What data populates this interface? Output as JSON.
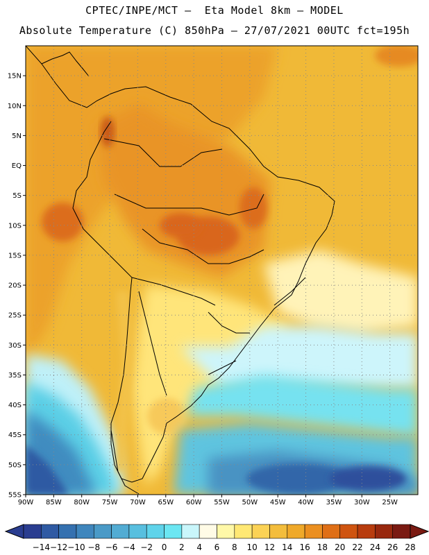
{
  "header": {
    "title_line1": "CPTEC/INPE/MCT –  Eta Model 8km – MODEL",
    "title_line2": "Absolute Temperature (C) 850hPa – 27/07/2021 00UTC fct=195h"
  },
  "map": {
    "lon_range": [
      -90,
      -20
    ],
    "lat_range": [
      -55,
      20
    ],
    "lat_ticks": [
      {
        "value": 15,
        "label": "15N"
      },
      {
        "value": 10,
        "label": "10N"
      },
      {
        "value": 5,
        "label": "5N"
      },
      {
        "value": 0,
        "label": "EQ"
      },
      {
        "value": -5,
        "label": "5S"
      },
      {
        "value": -10,
        "label": "10S"
      },
      {
        "value": -15,
        "label": "15S"
      },
      {
        "value": -20,
        "label": "20S"
      },
      {
        "value": -25,
        "label": "25S"
      },
      {
        "value": -30,
        "label": "30S"
      },
      {
        "value": -35,
        "label": "35S"
      },
      {
        "value": -40,
        "label": "40S"
      },
      {
        "value": -45,
        "label": "45S"
      },
      {
        "value": -50,
        "label": "50S"
      },
      {
        "value": -55,
        "label": "55S"
      }
    ],
    "lon_ticks": [
      {
        "value": -90,
        "label": "90W"
      },
      {
        "value": -85,
        "label": "85W"
      },
      {
        "value": -80,
        "label": "80W"
      },
      {
        "value": -75,
        "label": "75W"
      },
      {
        "value": -70,
        "label": "70W"
      },
      {
        "value": -65,
        "label": "65W"
      },
      {
        "value": -60,
        "label": "60W"
      },
      {
        "value": -55,
        "label": "55W"
      },
      {
        "value": -50,
        "label": "50W"
      },
      {
        "value": -45,
        "label": "45W"
      },
      {
        "value": -40,
        "label": "40W"
      },
      {
        "value": -35,
        "label": "35W"
      },
      {
        "value": -30,
        "label": "30W"
      },
      {
        "value": -25,
        "label": "25W"
      }
    ],
    "grid": "dotted"
  },
  "colorbar": {
    "labels": [
      "-14",
      "-12",
      "-10",
      "-8",
      "-6",
      "-4",
      "-2",
      "0",
      "2",
      "4",
      "6",
      "8",
      "10",
      "12",
      "14",
      "16",
      "18",
      "20",
      "22",
      "24",
      "26",
      "28"
    ],
    "colors": [
      "#2a3d90",
      "#2f5aa3",
      "#3571b0",
      "#3f86bd",
      "#4a9ac7",
      "#52acd3",
      "#58bfdf",
      "#5fd3ea",
      "#6be6f2",
      "#c9f6fb",
      "#fffbe6",
      "#fff8a8",
      "#ffe874",
      "#fbd255",
      "#f3bd3c",
      "#efa92a",
      "#eb8f20",
      "#df6f16",
      "#cf5410",
      "#b83c0e",
      "#98280e",
      "#7a1a12"
    ]
  }
}
